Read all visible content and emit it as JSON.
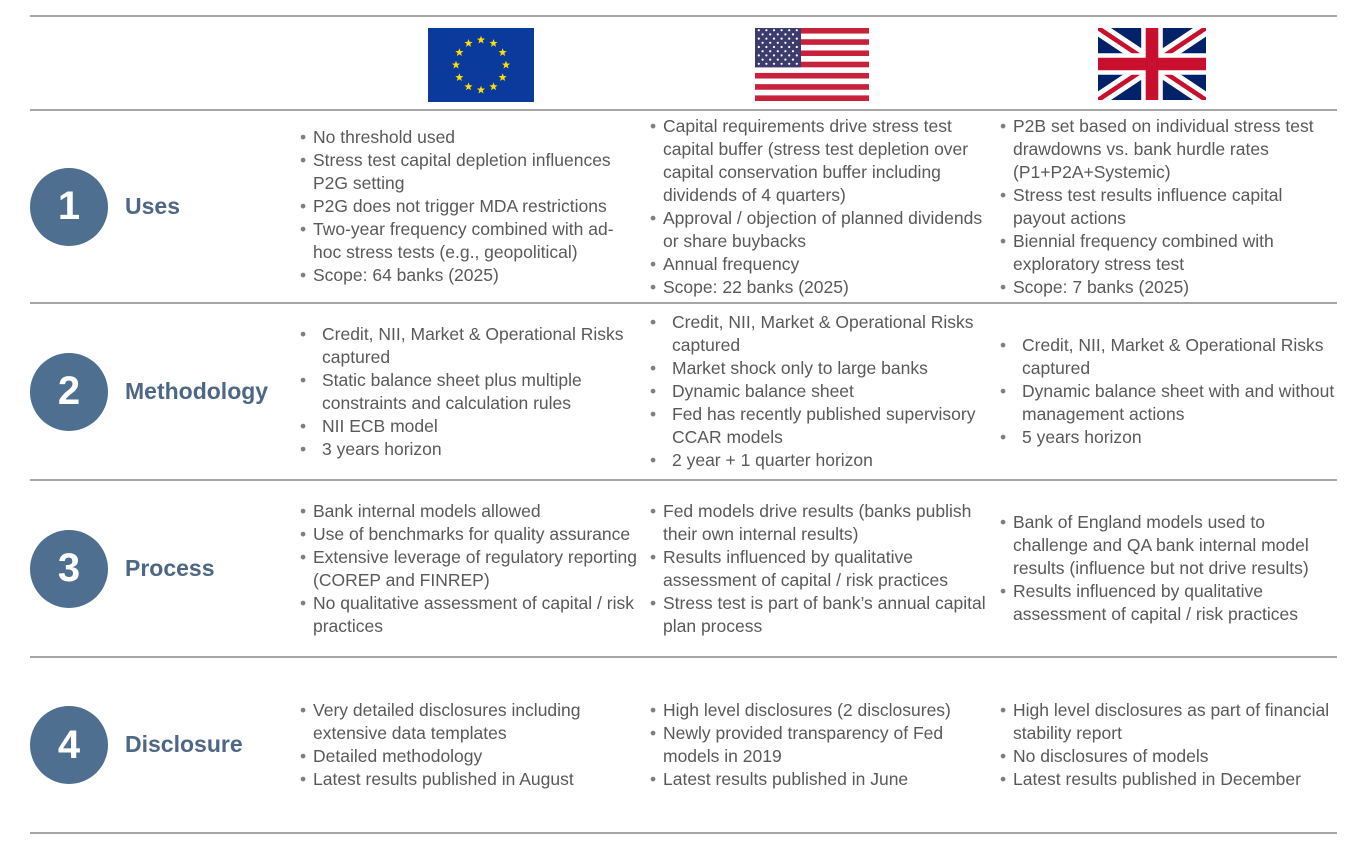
{
  "flags": [
    {
      "name": "eu-flag",
      "colors": {
        "blue": "#0a3a9c",
        "star": "#ffdd00"
      }
    },
    {
      "name": "us-flag",
      "colors": {
        "red": "#c8213b",
        "blue": "#3c3b6e"
      }
    },
    {
      "name": "uk-flag",
      "colors": {
        "red": "#c8102e",
        "blue": "#012169"
      }
    }
  ],
  "accent": "#4e6f8f",
  "rows": [
    {
      "number": "1",
      "title": "Uses",
      "cols": [
        [
          "No threshold used",
          "Stress test capital depletion influences P2G setting",
          "P2G does not trigger MDA restrictions",
          "Two-year frequency combined with ad-hoc stress tests (e.g., geopolitical)",
          "Scope: 64 banks (2025)"
        ],
        [
          "Capital requirements drive stress test capital buffer (stress test depletion over capital conservation buffer including dividends of 4 quarters)",
          "Approval / objection of planned dividends or share buybacks",
          "Annual frequency",
          "Scope: 22 banks (2025)"
        ],
        [
          "P2B set based on individual stress test drawdowns vs. bank hurdle rates (P1+P2A+Systemic)",
          "Stress test results influence capital payout actions",
          "Biennial frequency combined with exploratory stress test",
          "Scope: 7 banks (2025)"
        ]
      ]
    },
    {
      "number": "2",
      "title": "Methodology",
      "cols": [
        [
          "Credit, NII, Market & Operational Risks captured",
          "Static balance sheet plus multiple constraints and calculation rules",
          "NII ECB model",
          "3 years horizon"
        ],
        [
          "Credit, NII, Market & Operational Risks captured",
          "Market shock only to large banks",
          "Dynamic balance sheet",
          "Fed has recently published supervisory CCAR models",
          "2 year + 1 quarter horizon"
        ],
        [
          "Credit, NII, Market & Operational Risks captured",
          "Dynamic balance sheet with and without management actions",
          "5 years horizon"
        ]
      ]
    },
    {
      "number": "3",
      "title": "Process",
      "cols": [
        [
          "Bank internal models allowed",
          "Use of benchmarks for quality assurance",
          "Extensive leverage of regulatory reporting (COREP and FINREP)",
          "No qualitative assessment of capital / risk practices"
        ],
        [
          "Fed models drive results (banks publish their own internal results)",
          "Results influenced by qualitative assessment of capital / risk practices",
          "Stress test is part of bank’s annual capital plan process"
        ],
        [
          "Bank of England models used to challenge and QA bank internal model results (influence but not drive results)",
          "Results influenced by qualitative assessment of capital / risk practices"
        ]
      ]
    },
    {
      "number": "4",
      "title": "Disclosure",
      "cols": [
        [
          "Very detailed disclosures including extensive data templates",
          "Detailed methodology",
          "Latest results published in August"
        ],
        [
          "High level disclosures (2 disclosures)",
          "Newly provided transparency of Fed models in 2019",
          "Latest results published in June"
        ],
        [
          "High level disclosures as part of financial stability report",
          "No disclosures of models",
          "Latest results published in December"
        ]
      ]
    }
  ]
}
